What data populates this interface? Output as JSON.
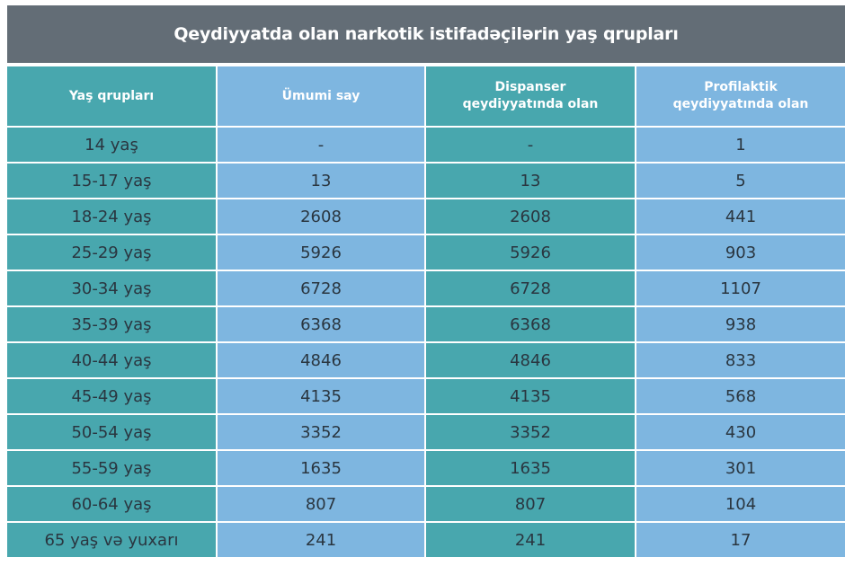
{
  "chart_data": {
    "type": "table",
    "title": "Qeydiyyatda olan narkotik istifadəçilərin yaş qrupları",
    "columns": [
      "Yaş qrupları",
      "Ümumi say",
      "Dispanser qeydiyyatında olan",
      "Profilaktik qeydiyyatında olan"
    ],
    "rows": [
      [
        "14 yaş",
        "-",
        "-",
        "1"
      ],
      [
        "15-17 yaş",
        "13",
        "13",
        "5"
      ],
      [
        "18-24 yaş",
        "2608",
        "2608",
        "441"
      ],
      [
        "25-29 yaş",
        "5926",
        "5926",
        "903"
      ],
      [
        "30-34 yaş",
        "6728",
        "6728",
        "1107"
      ],
      [
        "35-39 yaş",
        "6368",
        "6368",
        "938"
      ],
      [
        "40-44 yaş",
        "4846",
        "4846",
        "833"
      ],
      [
        "45-49 yaş",
        "4135",
        "4135",
        "568"
      ],
      [
        "50-54 yaş",
        "3352",
        "3352",
        "430"
      ],
      [
        "55-59 yaş",
        "1635",
        "1635",
        "301"
      ],
      [
        "60-64 yaş",
        "807",
        "807",
        "104"
      ],
      [
        "65 yaş və yuxarı",
        "241",
        "241",
        "17"
      ]
    ]
  },
  "colors": {
    "title_bg": "#636d76",
    "teal": "#48a7ae",
    "blue": "#7eb6e0"
  }
}
